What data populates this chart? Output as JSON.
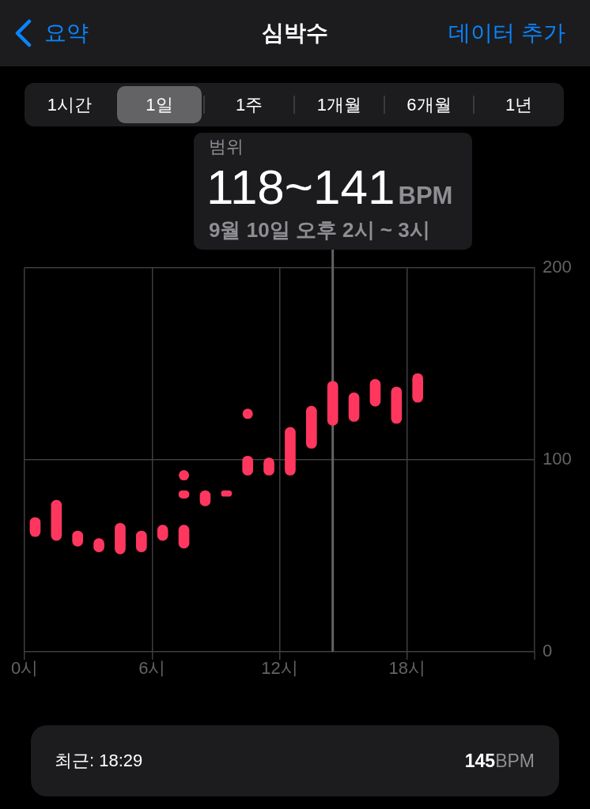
{
  "chart_data": {
    "type": "bar",
    "title": "심박수",
    "x": [
      0.5,
      1.5,
      2.5,
      3.5,
      4.5,
      5.5,
      6.5,
      7.5,
      8.5,
      9.5,
      10.5,
      11.5,
      12.5,
      13.5,
      14.5,
      15.5,
      16.5,
      17.5,
      18.5
    ],
    "series": [
      {
        "color": "#ff375f",
        "base": [
          60,
          58,
          55,
          52,
          51,
          52,
          58,
          54,
          76,
          81,
          92,
          92,
          92,
          106,
          118,
          120,
          128,
          119,
          130
        ],
        "values": [
          10,
          21,
          8,
          7,
          16,
          11,
          8,
          12,
          8,
          3,
          10,
          9,
          25,
          22,
          23,
          15,
          14,
          19,
          15
        ]
      },
      {
        "color": "#ff375f",
        "base": [
          null,
          null,
          null,
          null,
          null,
          null,
          null,
          80,
          null,
          null,
          null,
          null,
          null,
          null,
          null,
          null,
          null,
          null,
          null
        ],
        "values": [
          null,
          null,
          null,
          null,
          null,
          null,
          null,
          4,
          null,
          null,
          null,
          null,
          null,
          null,
          null,
          null,
          null,
          null,
          null
        ]
      },
      {
        "type": "scatter",
        "color": "#ff375f",
        "marker": "circle",
        "values": [
          null,
          null,
          null,
          null,
          null,
          null,
          null,
          92,
          null,
          null,
          124,
          null,
          null,
          null,
          null,
          null,
          null,
          null,
          null
        ]
      }
    ],
    "xlim": [
      0,
      24
    ],
    "xticks": [
      {
        "value": 0,
        "label": "0시"
      },
      {
        "value": 6,
        "label": "6시"
      },
      {
        "value": 12,
        "label": "12시"
      },
      {
        "value": 18,
        "label": "18시"
      }
    ],
    "ylim": [
      0,
      200
    ],
    "yticks": [
      0,
      100,
      200
    ],
    "grid": true,
    "ref_lines": [
      {
        "axis": "x",
        "value": 14.5,
        "color": "#636366"
      }
    ],
    "annotations": [
      "요약",
      "데이터 추가",
      "1시간",
      "1일",
      "1주",
      "1개월",
      "6개월",
      "1년",
      "범위",
      "118~141",
      "BPM",
      "9월 10일 오후 2시 ~ 3시",
      "최근: 18:29",
      "145",
      "BPM"
    ]
  }
}
